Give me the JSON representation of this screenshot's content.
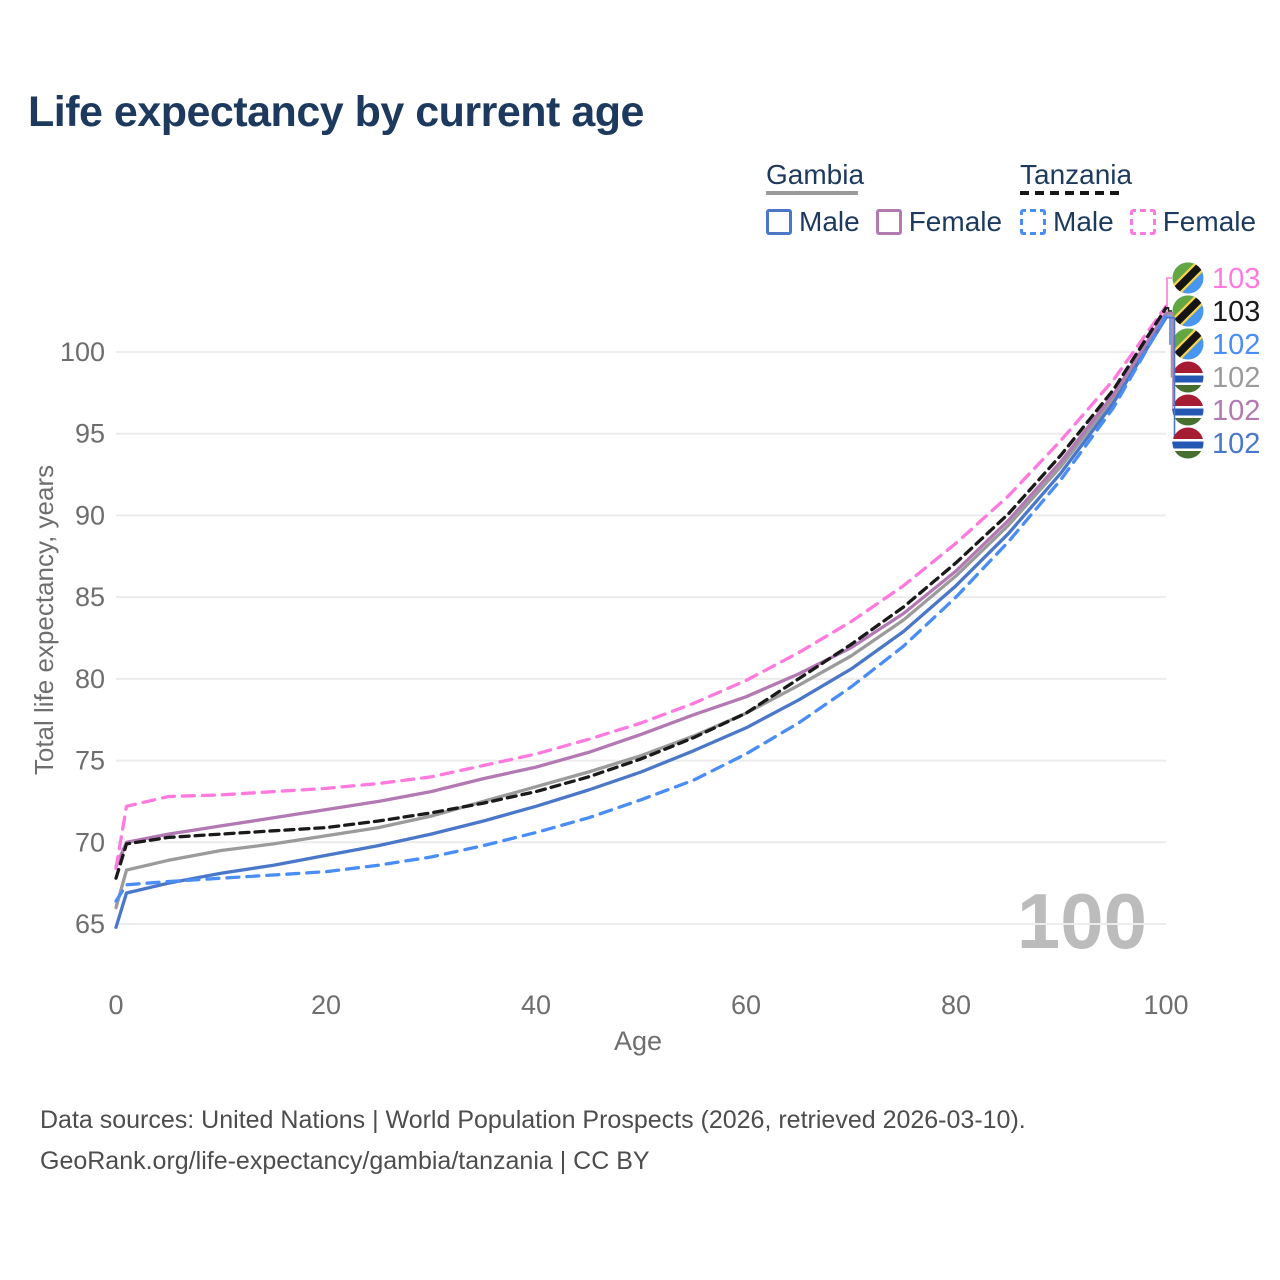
{
  "title": "Life expectancy by current age",
  "legend": {
    "groups": [
      {
        "id": "gambia",
        "label": "Gambia",
        "line_style": "solid",
        "entries": [
          {
            "id": "gambia-male",
            "label": "Male",
            "color": "#4a77c8"
          },
          {
            "id": "gambia-female",
            "label": "Female",
            "color": "#b279b2"
          }
        ]
      },
      {
        "id": "tanzania",
        "label": "Tanzania",
        "line_style": "dashed",
        "entries": [
          {
            "id": "tanzania-male",
            "label": "Male",
            "color": "#4a8df5"
          },
          {
            "id": "tanzania-female",
            "label": "Female",
            "color": "#ff7ade"
          }
        ]
      }
    ]
  },
  "chart_data": {
    "type": "line",
    "title": "Life expectancy by current age",
    "xlabel": "Age",
    "ylabel": "Total life expectancy, years",
    "xlim": [
      0,
      100
    ],
    "ylim": [
      64,
      104
    ],
    "xticks": [
      0,
      20,
      40,
      60,
      80,
      100
    ],
    "yticks": [
      65,
      70,
      75,
      80,
      85,
      90,
      95,
      100
    ],
    "grid": "horizontal",
    "legend_position": "top-right",
    "watermark": "100",
    "x": [
      0,
      1,
      5,
      10,
      15,
      20,
      25,
      30,
      35,
      40,
      45,
      50,
      55,
      60,
      65,
      70,
      75,
      80,
      85,
      90,
      95,
      100
    ],
    "series": [
      {
        "id": "gambia-total",
        "name": "Gambia",
        "country": "Gambia",
        "sex": "Total",
        "color": "#9b9b9b",
        "dashed": false,
        "values": [
          66.0,
          68.3,
          68.9,
          69.5,
          69.9,
          70.4,
          70.9,
          71.6,
          72.5,
          73.4,
          74.3,
          75.3,
          76.5,
          77.9,
          79.6,
          81.4,
          83.6,
          86.3,
          89.4,
          93.0,
          97.2,
          102.3
        ]
      },
      {
        "id": "gambia-female",
        "name": "Gambia Female",
        "country": "Gambia",
        "sex": "Female",
        "color": "#b279b2",
        "dashed": false,
        "values": [
          68.5,
          70.0,
          70.5,
          71.0,
          71.5,
          72.0,
          72.5,
          73.1,
          73.9,
          74.6,
          75.5,
          76.6,
          77.8,
          78.9,
          80.3,
          81.9,
          84.0,
          86.6,
          89.7,
          93.3,
          97.4,
          102.4
        ]
      },
      {
        "id": "gambia-male",
        "name": "Gambia Male",
        "country": "Gambia",
        "sex": "Male",
        "color": "#4a77c8",
        "dashed": false,
        "values": [
          64.8,
          66.9,
          67.5,
          68.1,
          68.6,
          69.2,
          69.8,
          70.5,
          71.3,
          72.2,
          73.2,
          74.3,
          75.6,
          77.0,
          78.7,
          80.6,
          82.9,
          85.7,
          88.9,
          92.6,
          96.9,
          102.1
        ]
      },
      {
        "id": "tanzania-female",
        "name": "Tanzania Female",
        "country": "Tanzania",
        "sex": "Female",
        "color": "#ff7ade",
        "dashed": true,
        "values": [
          68.4,
          72.2,
          72.8,
          72.9,
          73.1,
          73.3,
          73.6,
          74.0,
          74.7,
          75.4,
          76.3,
          77.3,
          78.5,
          79.9,
          81.6,
          83.5,
          85.7,
          88.3,
          91.2,
          94.6,
          98.3,
          102.8
        ]
      },
      {
        "id": "tanzania-male",
        "name": "Tanzania Male",
        "country": "Tanzania",
        "sex": "Male",
        "color": "#4a8df5",
        "dashed": true,
        "values": [
          66.4,
          67.4,
          67.6,
          67.8,
          68.0,
          68.2,
          68.6,
          69.1,
          69.8,
          70.6,
          71.5,
          72.6,
          73.8,
          75.4,
          77.3,
          79.5,
          82.0,
          85.0,
          88.4,
          92.2,
          96.6,
          102.2
        ]
      },
      {
        "id": "tanzania-total",
        "name": "Tanzania",
        "country": "Tanzania",
        "sex": "Total",
        "color": "#1a1a1a",
        "dashed": true,
        "values": [
          67.8,
          69.9,
          70.3,
          70.5,
          70.7,
          70.9,
          71.3,
          71.8,
          72.4,
          73.1,
          74.0,
          75.1,
          76.4,
          77.9,
          80.0,
          82.1,
          84.4,
          87.1,
          90.1,
          93.7,
          97.7,
          102.7
        ]
      }
    ],
    "end_labels": [
      {
        "series": "tanzania-female",
        "flag": "tanzania",
        "value": "103"
      },
      {
        "series": "tanzania-total",
        "flag": "tanzania",
        "value": "103"
      },
      {
        "series": "tanzania-male",
        "flag": "tanzania",
        "value": "102"
      },
      {
        "series": "gambia-total",
        "flag": "gambia",
        "value": "102"
      },
      {
        "series": "gambia-female",
        "flag": "gambia",
        "value": "102"
      },
      {
        "series": "gambia-male",
        "flag": "gambia",
        "value": "102"
      }
    ]
  },
  "footer": {
    "line1": "Data sources: United Nations | World Population Prospects (2026, retrieved 2026-03-10).",
    "line2": "GeoRank.org/life-expectancy/gambia/tanzania | CC BY"
  }
}
